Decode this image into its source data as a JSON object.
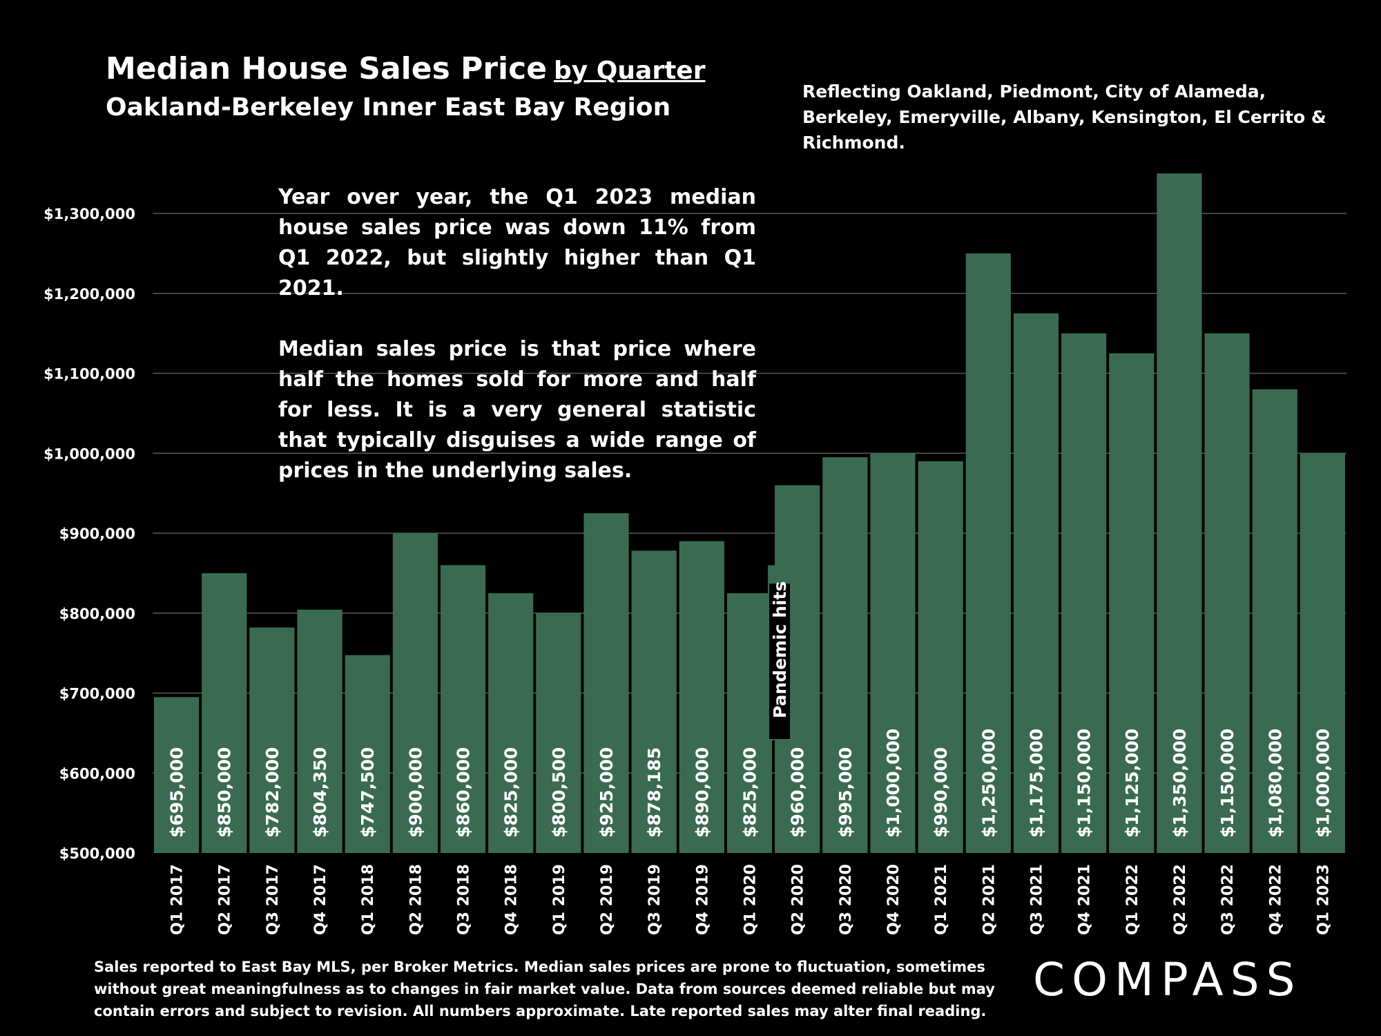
{
  "header": {
    "title": "Median House Sales Price",
    "title_suffix": "by Quarter",
    "subtitle": "Oakland-Berkeley Inner East Bay Region",
    "region_note": "Reflecting Oakland, Piedmont, City of Alameda, Berkeley, Emeryville, Albany, Kensington, El Cerrito & Richmond."
  },
  "commentary": {
    "paragraph1": "Year over year, the Q1 2023 median house sales price was down 11% from Q1 2022, but slightly higher than Q1 2021.",
    "paragraph2": "Median sales price is that price where half the homes sold for more and half for less. It is a very general statistic that typically disguises a wide range of prices in the underlying sales."
  },
  "footnote": "Sales reported to East Bay MLS, per Broker Metrics. Median sales prices are prone to fluctuation, sometimes without great meaningfulness as to changes in fair market value. Data from sources deemed reliable but may contain errors and subject to revision. All numbers approximate. Late reported sales may alter final reading.",
  "logo_text": "COMPASS",
  "chart_data": {
    "type": "bar",
    "title": "Median House Sales Price by Quarter",
    "xlabel": "",
    "ylabel": "",
    "ylim": [
      500000,
      1350000
    ],
    "yticks": [
      500000,
      600000,
      700000,
      800000,
      900000,
      1000000,
      1100000,
      1200000,
      1300000
    ],
    "ytick_labels": [
      "$500,000",
      "$600,000",
      "$700,000",
      "$800,000",
      "$900,000",
      "$1,000,000",
      "$1,100,000",
      "$1,200,000",
      "$1,300,000"
    ],
    "grid": true,
    "bar_color": "#3a6b52",
    "categories": [
      "Q1 2017",
      "Q2 2017",
      "Q3 2017",
      "Q4 2017",
      "Q1 2018",
      "Q2 2018",
      "Q3 2018",
      "Q4 2018",
      "Q1 2019",
      "Q2 2019",
      "Q3 2019",
      "Q4 2019",
      "Q1 2020",
      "Q2 2020",
      "Q3 2020",
      "Q4 2020",
      "Q1 2021",
      "Q2 2021",
      "Q3 2021",
      "Q4 2021",
      "Q1 2022",
      "Q2 2022",
      "Q3 2022",
      "Q4 2022",
      "Q1 2023"
    ],
    "values": [
      695000,
      850000,
      782000,
      804350,
      747500,
      900000,
      860000,
      825000,
      800500,
      925000,
      878185,
      890000,
      825000,
      960000,
      995000,
      1000000,
      990000,
      1250000,
      1175000,
      1150000,
      1125000,
      1350000,
      1150000,
      1080000,
      1000000
    ],
    "value_labels": [
      "$695,000",
      "$850,000",
      "$782,000",
      "$804,350",
      "$747,500",
      "$900,000",
      "$860,000",
      "$825,000",
      "$800,500",
      "$925,000",
      "$878,185",
      "$890,000",
      "$825,000",
      "$960,000",
      "$995,000",
      "$1,000,000",
      "$990,000",
      "$1,250,000",
      "$1,175,000",
      "$1,150,000",
      "$1,125,000",
      "$1,350,000",
      "$1,150,000",
      "$1,080,000",
      "$1,000,000"
    ],
    "annotations": [
      {
        "text": "Pandemic hits",
        "category": "Q1 2020",
        "value": 860000
      }
    ]
  }
}
